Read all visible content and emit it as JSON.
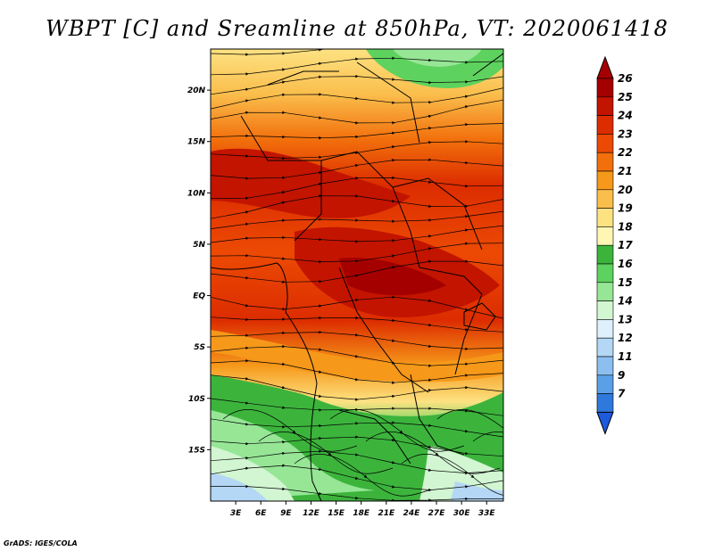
{
  "title": "WBPT [C] and Sreamline at 850hPa, VT: 2020061418",
  "credit": "GrADS: IGES/COLA",
  "map": {
    "lon_range": [
      0,
      35
    ],
    "lat_range": [
      -20,
      24
    ],
    "x_ticks": [
      {
        "value": 3,
        "label": "3E"
      },
      {
        "value": 6,
        "label": "6E"
      },
      {
        "value": 9,
        "label": "9E"
      },
      {
        "value": 12,
        "label": "12E"
      },
      {
        "value": 15,
        "label": "15E"
      },
      {
        "value": 18,
        "label": "18E"
      },
      {
        "value": 21,
        "label": "21E"
      },
      {
        "value": 24,
        "label": "24E"
      },
      {
        "value": 27,
        "label": "27E"
      },
      {
        "value": 30,
        "label": "30E"
      },
      {
        "value": 33,
        "label": "33E"
      }
    ],
    "y_ticks": [
      {
        "value": 20,
        "label": "20N"
      },
      {
        "value": 15,
        "label": "15N"
      },
      {
        "value": 10,
        "label": "10N"
      },
      {
        "value": 5,
        "label": "5N"
      },
      {
        "value": 0,
        "label": "EQ"
      },
      {
        "value": -5,
        "label": "5S"
      },
      {
        "value": -10,
        "label": "10S"
      },
      {
        "value": -15,
        "label": "15S"
      }
    ]
  },
  "colorbar": {
    "levels": [
      {
        "label": "26",
        "color": "#a50000"
      },
      {
        "label": "25",
        "color": "#c31400"
      },
      {
        "label": "24",
        "color": "#dc2c00"
      },
      {
        "label": "23",
        "color": "#ec4a04"
      },
      {
        "label": "22",
        "color": "#f2700c"
      },
      {
        "label": "21",
        "color": "#f6981a"
      },
      {
        "label": "20",
        "color": "#fabe4c"
      },
      {
        "label": "19",
        "color": "#fde282"
      },
      {
        "label": "18",
        "color": "#fff6b4"
      },
      {
        "label": "17",
        "color": "#3cb43c"
      },
      {
        "label": "16",
        "color": "#5ed25e"
      },
      {
        "label": "15",
        "color": "#96e696"
      },
      {
        "label": "14",
        "color": "#d2f5d2"
      },
      {
        "label": "13",
        "color": "#ddf0fb"
      },
      {
        "label": "12",
        "color": "#b4d7f5"
      },
      {
        "label": "11",
        "color": "#8cbfef"
      },
      {
        "label": "9",
        "color": "#5aa0e6"
      },
      {
        "label": "7",
        "color": "#2f78dc"
      }
    ],
    "bottom_color": "#1e5adc"
  }
}
